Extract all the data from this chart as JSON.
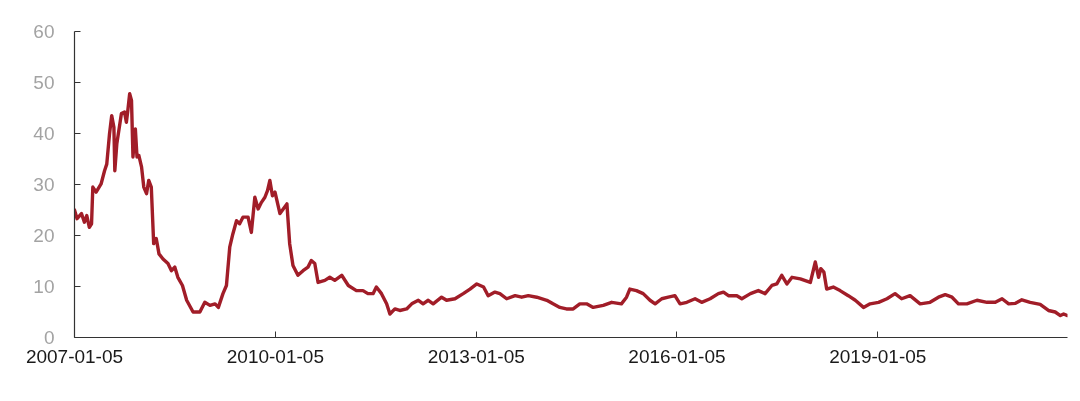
{
  "chart_data": {
    "type": "line",
    "x": [
      "2007-01-05",
      "2007-01-19",
      "2007-02-12",
      "2007-02-28",
      "2007-03-13",
      "2007-03-27",
      "2007-04-08",
      "2007-04-15",
      "2007-05-03",
      "2007-05-30",
      "2007-06-18",
      "2007-06-30",
      "2007-07-15",
      "2007-07-27",
      "2007-08-08",
      "2007-08-13",
      "2007-08-24",
      "2007-09-18",
      "2007-10-05",
      "2007-10-15",
      "2007-10-23",
      "2007-11-02",
      "2007-11-12",
      "2007-11-20",
      "2007-12-03",
      "2007-12-12",
      "2007-12-22",
      "2008-01-06",
      "2008-01-18",
      "2008-02-02",
      "2008-02-14",
      "2008-02-28",
      "2008-03-12",
      "2008-03-26",
      "2008-04-10",
      "2008-05-02",
      "2008-05-29",
      "2008-06-17",
      "2008-07-05",
      "2008-07-22",
      "2008-08-16",
      "2008-09-08",
      "2008-10-13",
      "2008-11-19",
      "2008-12-16",
      "2009-01-13",
      "2009-02-10",
      "2009-02-28",
      "2009-03-25",
      "2009-04-13",
      "2009-05-01",
      "2009-05-18",
      "2009-06-07",
      "2009-06-24",
      "2009-07-12",
      "2009-08-09",
      "2009-08-27",
      "2009-09-15",
      "2009-10-03",
      "2009-10-21",
      "2009-11-09",
      "2009-11-23",
      "2009-12-06",
      "2009-12-20",
      "2010-01-03",
      "2010-01-30",
      "2010-02-17",
      "2010-03-09",
      "2010-03-24",
      "2010-04-11",
      "2010-05-08",
      "2010-06-05",
      "2010-07-02",
      "2010-07-20",
      "2010-08-08",
      "2010-08-26",
      "2010-10-02",
      "2010-10-29",
      "2010-11-25",
      "2011-01-02",
      "2011-02-07",
      "2011-03-23",
      "2011-04-28",
      "2011-05-25",
      "2011-06-22",
      "2011-07-10",
      "2011-08-07",
      "2011-09-04",
      "2011-09-22",
      "2011-10-19",
      "2011-11-15",
      "2011-12-22",
      "2012-01-19",
      "2012-02-24",
      "2012-03-21",
      "2012-04-18",
      "2012-05-15",
      "2012-06-30",
      "2012-07-27",
      "2012-09-11",
      "2012-10-26",
      "2012-12-02",
      "2013-01-08",
      "2013-02-14",
      "2013-03-11",
      "2013-04-17",
      "2013-05-14",
      "2013-06-20",
      "2013-08-05",
      "2013-09-10",
      "2013-10-16",
      "2013-12-01",
      "2014-01-25",
      "2014-02-28",
      "2014-04-06",
      "2014-05-12",
      "2014-06-18",
      "2014-07-24",
      "2014-08-30",
      "2014-10-05",
      "2014-11-29",
      "2015-01-14",
      "2015-03-08",
      "2015-04-05",
      "2015-04-23",
      "2015-05-29",
      "2015-07-05",
      "2015-08-11",
      "2015-09-08",
      "2015-10-14",
      "2015-11-19",
      "2015-12-25",
      "2016-01-22",
      "2016-02-28",
      "2016-04-13",
      "2016-05-19",
      "2016-07-04",
      "2016-08-18",
      "2016-09-15",
      "2016-10-12",
      "2016-11-27",
      "2016-12-24",
      "2017-02-09",
      "2017-03-24",
      "2017-04-30",
      "2017-06-06",
      "2017-07-03",
      "2017-07-30",
      "2017-08-27",
      "2017-09-24",
      "2017-11-08",
      "2018-01-02",
      "2018-01-29",
      "2018-02-16",
      "2018-02-28",
      "2018-03-17",
      "2018-04-01",
      "2018-05-07",
      "2018-06-13",
      "2018-07-28",
      "2018-09-04",
      "2018-10-19",
      "2018-11-24",
      "2019-01-09",
      "2019-02-24",
      "2019-04-09",
      "2019-05-15",
      "2019-06-30",
      "2019-08-24",
      "2019-10-17",
      "2019-12-02",
      "2020-01-08",
      "2020-02-14",
      "2020-03-20",
      "2020-05-05",
      "2020-06-29",
      "2020-08-23",
      "2020-10-07",
      "2020-11-13",
      "2020-12-19",
      "2021-01-25",
      "2021-03-01",
      "2021-04-15",
      "2021-06-09",
      "2021-07-24",
      "2021-08-30",
      "2021-09-27",
      "2021-10-15",
      "2021-11-05"
    ],
    "series": [
      {
        "color": "#a11d28",
        "values": [
          25.0,
          23.3,
          24.3,
          22.6,
          23.9,
          21.6,
          22.3,
          29.5,
          28.5,
          30.1,
          32.7,
          34.0,
          39.9,
          43.5,
          41.2,
          32.7,
          38.0,
          43.9,
          44.2,
          42.2,
          44.5,
          47.8,
          46.5,
          35.4,
          40.9,
          35.4,
          35.7,
          33.4,
          29.5,
          28.2,
          30.8,
          29.5,
          18.4,
          19.4,
          16.4,
          15.4,
          14.5,
          13.1,
          13.8,
          11.8,
          10.2,
          7.3,
          5.0,
          5.0,
          6.9,
          6.3,
          6.6,
          5.9,
          8.6,
          10.2,
          17.7,
          20.3,
          22.9,
          22.3,
          23.6,
          23.6,
          20.6,
          27.5,
          25.2,
          26.5,
          27.5,
          28.8,
          30.8,
          27.8,
          28.5,
          24.3,
          25.2,
          26.2,
          18.4,
          14.1,
          12.2,
          13.1,
          13.8,
          15.1,
          14.5,
          10.8,
          11.2,
          11.8,
          11.2,
          12.2,
          10.2,
          9.2,
          9.2,
          8.6,
          8.6,
          9.9,
          8.6,
          6.6,
          4.6,
          5.6,
          5.3,
          5.6,
          6.6,
          7.3,
          6.6,
          7.3,
          6.6,
          7.9,
          7.3,
          7.6,
          8.6,
          9.5,
          10.5,
          9.9,
          8.2,
          8.9,
          8.6,
          7.6,
          8.2,
          7.9,
          8.2,
          7.9,
          7.3,
          6.6,
          5.9,
          5.6,
          5.6,
          6.6,
          6.6,
          5.9,
          6.3,
          6.9,
          6.6,
          7.9,
          9.5,
          9.2,
          8.6,
          7.3,
          6.6,
          7.6,
          7.9,
          8.2,
          6.6,
          6.9,
          7.6,
          6.9,
          7.6,
          8.6,
          8.9,
          8.2,
          8.2,
          7.6,
          8.6,
          9.2,
          8.6,
          10.2,
          10.5,
          12.2,
          10.5,
          11.8,
          11.5,
          10.8,
          14.8,
          11.8,
          13.5,
          12.8,
          9.5,
          9.9,
          9.2,
          8.2,
          7.3,
          5.9,
          6.6,
          6.9,
          7.6,
          8.6,
          7.6,
          8.2,
          6.6,
          6.9,
          7.9,
          8.4,
          7.9,
          6.6,
          6.6,
          7.3,
          6.9,
          6.9,
          7.6,
          6.6,
          6.7,
          7.4,
          6.9,
          6.5,
          5.3,
          5.0,
          4.3,
          4.6,
          4.3
        ]
      }
    ],
    "xlim": [
      "2007-01-05",
      "2021-11-05"
    ],
    "xticks": [
      "2007-01-05",
      "2010-01-05",
      "2013-01-05",
      "2016-01-05",
      "2019-01-05"
    ],
    "ylim": [
      0,
      60
    ],
    "yticks": [
      0,
      10,
      20,
      30,
      40,
      50,
      60
    ]
  }
}
